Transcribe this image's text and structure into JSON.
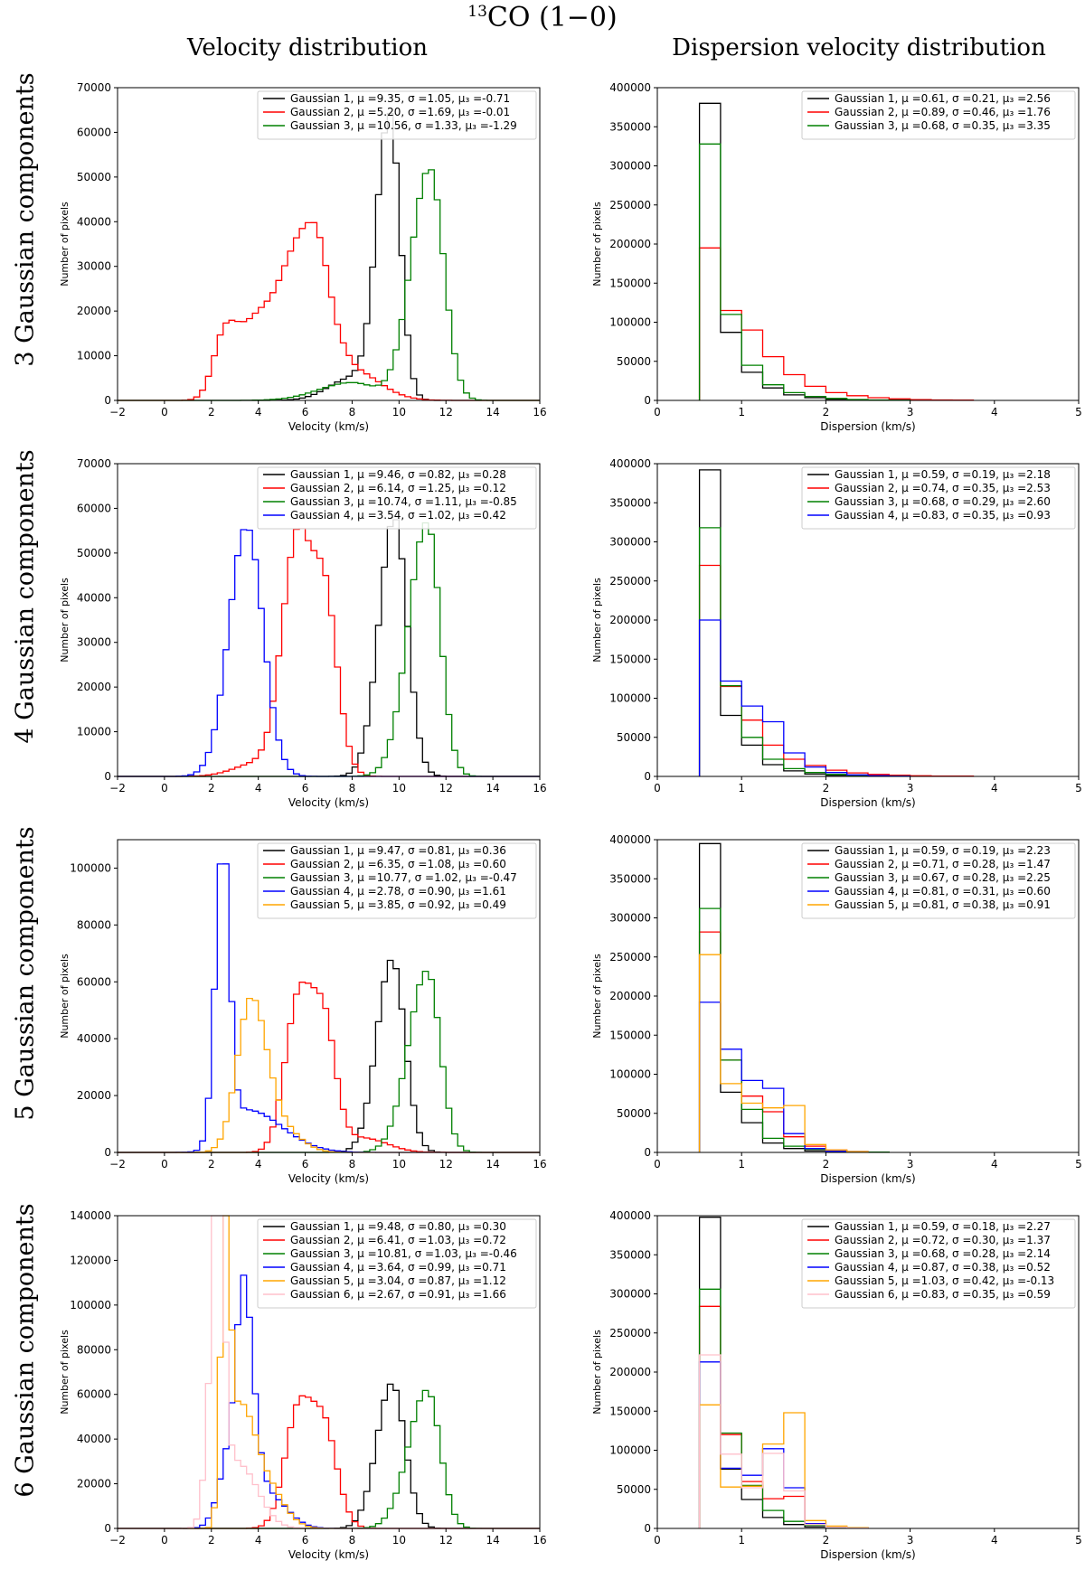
{
  "title": {
    "iso": "13",
    "mol": "CO (1−0)"
  },
  "column_titles": [
    "Velocity distribution",
    "Dispersion velocity distribution"
  ],
  "row_labels": [
    "3 Gaussian components",
    "4 Gaussian components",
    "5 Gaussian components",
    "6 Gaussian components"
  ],
  "colors": {
    "Gaussian 1": "#000000",
    "Gaussian 2": "#ff0000",
    "Gaussian 3": "#008000",
    "Gaussian 4": "#0000ff",
    "Gaussian 5": "#ffa500",
    "Gaussian 6": "#ffc0cb"
  },
  "chart_data": [
    {
      "type": "histogram",
      "row": 0,
      "col": 0,
      "xlabel": "Velocity (km/s)",
      "ylabel": "Number of pixels",
      "xlim": [
        -2,
        16
      ],
      "ylim": [
        0,
        70000
      ],
      "xticks": [
        -2,
        0,
        2,
        4,
        6,
        8,
        10,
        12,
        14,
        16
      ],
      "yticks": [
        0,
        10000,
        20000,
        30000,
        40000,
        50000,
        60000,
        70000
      ],
      "bin_start": -2,
      "bin_width": 0.25,
      "series": [
        {
          "name": "Gaussian 1",
          "color": "#000000",
          "legend": "Gaussian 1,  μ =9.35,  σ =1.05,  μ₃ =-0.71",
          "peaks": [
            [
              9.6,
              63000,
              0.55,
              0.45
            ],
            [
              8.0,
              5000,
              1.0,
              1.0
            ]
          ]
        },
        {
          "name": "Gaussian 2",
          "color": "#ff0000",
          "legend": "Gaussian 2,  μ =5.20,  σ =1.69,  μ₃ =-0.01",
          "peaks": [
            [
              2.6,
              15000,
              0.5,
              0.6
            ],
            [
              4.0,
              16000,
              0.7,
              0.7
            ],
            [
              5.6,
              31000,
              0.75,
              0.6
            ],
            [
              6.6,
              29000,
              0.5,
              0.6
            ],
            [
              7.9,
              7000,
              0.5,
              1.2
            ]
          ]
        },
        {
          "name": "Gaussian 3",
          "color": "#008000",
          "legend": "Gaussian 3,  μ =10.56,  σ =1.33,  μ₃ =-1.29",
          "peaks": [
            [
              11.3,
              52000,
              0.8,
              0.6
            ],
            [
              8.0,
              4000,
              1.4,
              1.0
            ]
          ]
        }
      ]
    },
    {
      "type": "histogram",
      "row": 0,
      "col": 1,
      "xlabel": "Dispersion (km/s)",
      "ylabel": "Number of pixels",
      "xlim": [
        0,
        5
      ],
      "ylim": [
        0,
        400000
      ],
      "xticks": [
        0,
        1,
        2,
        3,
        4,
        5
      ],
      "yticks": [
        0,
        50000,
        100000,
        150000,
        200000,
        250000,
        300000,
        350000,
        400000
      ],
      "bin_start": 0.5,
      "bin_width": 0.25,
      "series": [
        {
          "name": "Gaussian 1",
          "color": "#000000",
          "legend": "Gaussian 1,  μ =0.61,  σ =0.21,  μ₃ =2.56",
          "values": [
            380000,
            87000,
            36000,
            16000,
            7000,
            3500,
            1500,
            800,
            400,
            200
          ]
        },
        {
          "name": "Gaussian 2",
          "color": "#ff0000",
          "legend": "Gaussian 2,  μ =0.89,  σ =0.46,  μ₃ =1.76",
          "values": [
            195000,
            115000,
            90000,
            56000,
            33000,
            18000,
            10000,
            6000,
            3500,
            2000,
            1000,
            600,
            400
          ]
        },
        {
          "name": "Gaussian 3",
          "color": "#008000",
          "legend": "Gaussian 3,  μ =0.68,  σ =0.35,  μ₃ =3.35",
          "values": [
            328000,
            110000,
            45000,
            20000,
            10000,
            5000,
            2500,
            1200,
            600,
            300
          ]
        }
      ]
    },
    {
      "type": "histogram",
      "row": 1,
      "col": 0,
      "xlabel": "Velocity (km/s)",
      "ylabel": "Number of pixels",
      "xlim": [
        -2,
        16
      ],
      "ylim": [
        0,
        70000
      ],
      "xticks": [
        -2,
        0,
        2,
        4,
        6,
        8,
        10,
        12,
        14,
        16
      ],
      "yticks": [
        0,
        10000,
        20000,
        30000,
        40000,
        50000,
        60000,
        70000
      ],
      "bin_start": -2,
      "bin_width": 0.25,
      "series": [
        {
          "name": "Gaussian 1",
          "color": "#000000",
          "legend": "Gaussian 1,  μ =9.46,  σ =0.82,  μ₃ =0.28",
          "peaks": [
            [
              9.8,
              58000,
              0.65,
              0.55
            ]
          ]
        },
        {
          "name": "Gaussian 2",
          "color": "#ff0000",
          "legend": "Gaussian 2,  μ =6.14,  σ =1.25,  μ₃ =0.12",
          "peaks": [
            [
              5.5,
              37000,
              0.6,
              0.5
            ],
            [
              6.7,
              46000,
              0.8,
              0.6
            ],
            [
              4.0,
              3000,
              1.0,
              1.0
            ]
          ]
        },
        {
          "name": "Gaussian 3",
          "color": "#008000",
          "legend": "Gaussian 3,  μ =10.74,  σ =1.11,  μ₃ =-0.85",
          "peaks": [
            [
              11.2,
              57000,
              0.8,
              0.55
            ]
          ]
        },
        {
          "name": "Gaussian 4",
          "color": "#0000ff",
          "legend": "Gaussian 4,  μ =3.54,  σ =1.02,  μ₃ =0.42",
          "peaks": [
            [
              3.5,
              56000,
              0.75,
              0.7
            ]
          ]
        }
      ]
    },
    {
      "type": "histogram",
      "row": 1,
      "col": 1,
      "xlabel": "Dispersion (km/s)",
      "ylabel": "Number of pixels",
      "xlim": [
        0,
        5
      ],
      "ylim": [
        0,
        400000
      ],
      "xticks": [
        0,
        1,
        2,
        3,
        4,
        5
      ],
      "yticks": [
        0,
        50000,
        100000,
        150000,
        200000,
        250000,
        300000,
        350000,
        400000
      ],
      "bin_start": 0.5,
      "bin_width": 0.25,
      "series": [
        {
          "name": "Gaussian 1",
          "color": "#000000",
          "legend": "Gaussian 1,  μ =0.59,  σ =0.19,  μ₃ =2.18",
          "values": [
            392000,
            78000,
            40000,
            15000,
            7000,
            3000,
            1500,
            700,
            300,
            150
          ]
        },
        {
          "name": "Gaussian 2",
          "color": "#ff0000",
          "legend": "Gaussian 2,  μ =0.74,  σ =0.35,  μ₃ =2.53",
          "values": [
            270000,
            115000,
            72000,
            40000,
            22000,
            14000,
            8000,
            4500,
            2500,
            1500,
            800,
            500,
            300
          ]
        },
        {
          "name": "Gaussian 3",
          "color": "#008000",
          "legend": "Gaussian 3,  μ =0.68,  σ =0.29,  μ₃ =2.60",
          "values": [
            318000,
            116000,
            50000,
            22000,
            10000,
            5000,
            2500,
            1200,
            600,
            300
          ]
        },
        {
          "name": "Gaussian 4",
          "color": "#0000ff",
          "legend": "Gaussian 4,  μ =0.83,  σ =0.35,  μ₃ =0.93",
          "values": [
            200000,
            122000,
            90000,
            70000,
            30000,
            12000,
            5000,
            2000,
            1000,
            500
          ]
        }
      ]
    },
    {
      "type": "histogram",
      "row": 2,
      "col": 0,
      "xlabel": "Velocity (km/s)",
      "ylabel": "Number of pixels",
      "xlim": [
        -2,
        16
      ],
      "ylim": [
        0,
        110000
      ],
      "xticks": [
        -2,
        0,
        2,
        4,
        6,
        8,
        10,
        12,
        14,
        16
      ],
      "yticks": [
        0,
        20000,
        40000,
        60000,
        80000,
        100000
      ],
      "bin_start": -2,
      "bin_width": 0.25,
      "series": [
        {
          "name": "Gaussian 1",
          "color": "#000000",
          "legend": "Gaussian 1,  μ =9.47,  σ =0.81,  μ₃ =0.36",
          "peaks": [
            [
              9.7,
              68000,
              0.65,
              0.55
            ]
          ]
        },
        {
          "name": "Gaussian 2",
          "color": "#ff0000",
          "legend": "Gaussian 2,  μ =6.35,  σ =1.08,  μ₃ =0.60",
          "peaks": [
            [
              5.6,
              40000,
              0.55,
              0.5
            ],
            [
              6.7,
              51000,
              0.7,
              0.55
            ],
            [
              8.5,
              5000,
              0.8,
              1.0
            ]
          ]
        },
        {
          "name": "Gaussian 3",
          "color": "#008000",
          "legend": "Gaussian 3,  μ =10.77,  σ =1.02,  μ₃ =-0.47",
          "peaks": [
            [
              11.2,
              64000,
              0.8,
              0.55
            ]
          ]
        },
        {
          "name": "Gaussian 4",
          "color": "#0000ff",
          "legend": "Gaussian 4,  μ =2.78,  σ =0.90,  μ₃ =1.61",
          "peaks": [
            [
              2.5,
              103000,
              0.33,
              0.28
            ],
            [
              3.5,
              15000,
              0.8,
              1.5
            ]
          ]
        },
        {
          "name": "Gaussian 5",
          "color": "#ffa500",
          "legend": "Gaussian 5,  μ =3.85,  σ =0.92,  μ₃ =0.49",
          "peaks": [
            [
              3.7,
              54000,
              0.6,
              0.65
            ],
            [
              5.0,
              8000,
              0.6,
              0.8
            ]
          ]
        }
      ]
    },
    {
      "type": "histogram",
      "row": 2,
      "col": 1,
      "xlabel": "Dispersion (km/s)",
      "ylabel": "Number of pixels",
      "xlim": [
        0,
        5
      ],
      "ylim": [
        0,
        400000
      ],
      "xticks": [
        0,
        1,
        2,
        3,
        4,
        5
      ],
      "yticks": [
        0,
        50000,
        100000,
        150000,
        200000,
        250000,
        300000,
        350000,
        400000
      ],
      "bin_start": 0.5,
      "bin_width": 0.25,
      "series": [
        {
          "name": "Gaussian 1",
          "color": "#000000",
          "legend": "Gaussian 1,  μ =0.59,  σ =0.19,  μ₃ =2.23",
          "values": [
            395000,
            77000,
            38000,
            12000,
            5000,
            2000,
            800,
            300
          ]
        },
        {
          "name": "Gaussian 2",
          "color": "#ff0000",
          "legend": "Gaussian 2,  μ =0.71,  σ =0.28,  μ₃ =1.47",
          "values": [
            282000,
            118000,
            72000,
            52000,
            20000,
            8000,
            3000,
            1200,
            500
          ]
        },
        {
          "name": "Gaussian 3",
          "color": "#008000",
          "legend": "Gaussian 3,  μ =0.67,  σ =0.28,  μ₃ =2.25",
          "values": [
            312000,
            118000,
            55000,
            18000,
            8000,
            4000,
            2000,
            800,
            300
          ]
        },
        {
          "name": "Gaussian 4",
          "color": "#0000ff",
          "legend": "Gaussian 4,  μ =0.81,  σ =0.31,  μ₃ =0.60",
          "values": [
            192000,
            132000,
            92000,
            82000,
            24000,
            5000,
            1500,
            500
          ]
        },
        {
          "name": "Gaussian 5",
          "color": "#ffa500",
          "legend": "Gaussian 5,  μ =0.81,  σ =0.38,  μ₃ =0.91",
          "values": [
            253000,
            88000,
            63000,
            57000,
            60000,
            10000,
            3000,
            800
          ]
        }
      ]
    },
    {
      "type": "histogram",
      "row": 3,
      "col": 0,
      "xlabel": "Velocity (km/s)",
      "ylabel": "Number of pixels",
      "xlim": [
        -2,
        16
      ],
      "ylim": [
        0,
        140000
      ],
      "xticks": [
        -2,
        0,
        2,
        4,
        6,
        8,
        10,
        12,
        14,
        16
      ],
      "yticks": [
        0,
        20000,
        40000,
        60000,
        80000,
        100000,
        120000,
        140000
      ],
      "bin_start": -2,
      "bin_width": 0.25,
      "series": [
        {
          "name": "Gaussian 1",
          "color": "#000000",
          "legend": "Gaussian 1,  μ =9.48,  σ =0.80,  μ₃ =0.30",
          "peaks": [
            [
              9.7,
              65000,
              0.65,
              0.55
            ]
          ]
        },
        {
          "name": "Gaussian 2",
          "color": "#ff0000",
          "legend": "Gaussian 2,  μ =6.41,  σ =1.03,  μ₃ =0.72",
          "peaks": [
            [
              5.6,
              40000,
              0.55,
              0.5
            ],
            [
              6.7,
              50000,
              0.7,
              0.6
            ]
          ]
        },
        {
          "name": "Gaussian 3",
          "color": "#008000",
          "legend": "Gaussian 3,  μ =10.81,  σ =1.03,  μ₃ =-0.46",
          "peaks": [
            [
              11.2,
              62000,
              0.8,
              0.55
            ]
          ]
        },
        {
          "name": "Gaussian 4",
          "color": "#0000ff",
          "legend": "Gaussian 4,  μ =3.64,  σ =0.99,  μ₃ =0.71",
          "peaks": [
            [
              3.4,
              84000,
              0.3,
              0.4
            ],
            [
              2.9,
              38000,
              0.5,
              0.6
            ],
            [
              4.4,
              15000,
              0.5,
              0.8
            ]
          ]
        },
        {
          "name": "Gaussian 5",
          "color": "#ffa500",
          "legend": "Gaussian 5,  μ =3.04,  σ =0.87,  μ₃ =1.12",
          "peaks": [
            [
              2.6,
              133000,
              0.2,
              0.2
            ],
            [
              3.2,
              50000,
              0.4,
              0.5
            ],
            [
              4.1,
              24000,
              0.5,
              0.8
            ]
          ]
        },
        {
          "name": "Gaussian 6",
          "color": "#ffc0cb",
          "legend": "Gaussian 6,  μ =2.67,  σ =0.91,  μ₃ =1.66",
          "peaks": [
            [
              2.3,
              132000,
              0.18,
              0.2
            ],
            [
              2.1,
              72000,
              0.3,
              0.4
            ],
            [
              3.2,
              28000,
              0.6,
              0.8
            ]
          ]
        }
      ]
    },
    {
      "type": "histogram",
      "row": 3,
      "col": 1,
      "xlabel": "Dispersion (km/s)",
      "ylabel": "Number of pixels",
      "xlim": [
        0,
        5
      ],
      "ylim": [
        0,
        400000
      ],
      "xticks": [
        0,
        1,
        2,
        3,
        4,
        5
      ],
      "yticks": [
        0,
        50000,
        100000,
        150000,
        200000,
        250000,
        300000,
        350000,
        400000
      ],
      "bin_start": 0.5,
      "bin_width": 0.25,
      "series": [
        {
          "name": "Gaussian 1",
          "color": "#000000",
          "legend": "Gaussian 1,  μ =0.59,  σ =0.18,  μ₃ =2.27",
          "values": [
            398000,
            76000,
            37000,
            14000,
            5000,
            2000,
            800,
            300
          ]
        },
        {
          "name": "Gaussian 2",
          "color": "#ff0000",
          "legend": "Gaussian 2,  μ =0.72,  σ =0.30,  μ₃ =1.37",
          "values": [
            284000,
            120000,
            60000,
            38000,
            41000,
            6000,
            2000,
            800
          ]
        },
        {
          "name": "Gaussian 3",
          "color": "#008000",
          "legend": "Gaussian 3,  μ =0.68,  σ =0.28,  μ₃ =2.14",
          "values": [
            306000,
            122000,
            55000,
            23000,
            9000,
            4000,
            1500,
            500
          ]
        },
        {
          "name": "Gaussian 4",
          "color": "#0000ff",
          "legend": "Gaussian 4,  μ =0.87,  σ =0.38,  μ₃ =0.52",
          "values": [
            213000,
            77000,
            68000,
            102000,
            52000,
            6000,
            2000,
            700
          ]
        },
        {
          "name": "Gaussian 5",
          "color": "#ffa500",
          "legend": "Gaussian 5,  μ =1.03,  σ =0.42,  μ₃ =-0.13",
          "values": [
            158000,
            53000,
            54000,
            108000,
            148000,
            10000,
            3000,
            1000
          ]
        },
        {
          "name": "Gaussian 6",
          "color": "#ffc0cb",
          "legend": "Gaussian 6,  μ =0.83,  σ =0.35,  μ₃ =0.59",
          "values": [
            222000,
            95000,
            52000,
            96000,
            48000,
            5000,
            1500,
            500
          ]
        }
      ]
    }
  ]
}
